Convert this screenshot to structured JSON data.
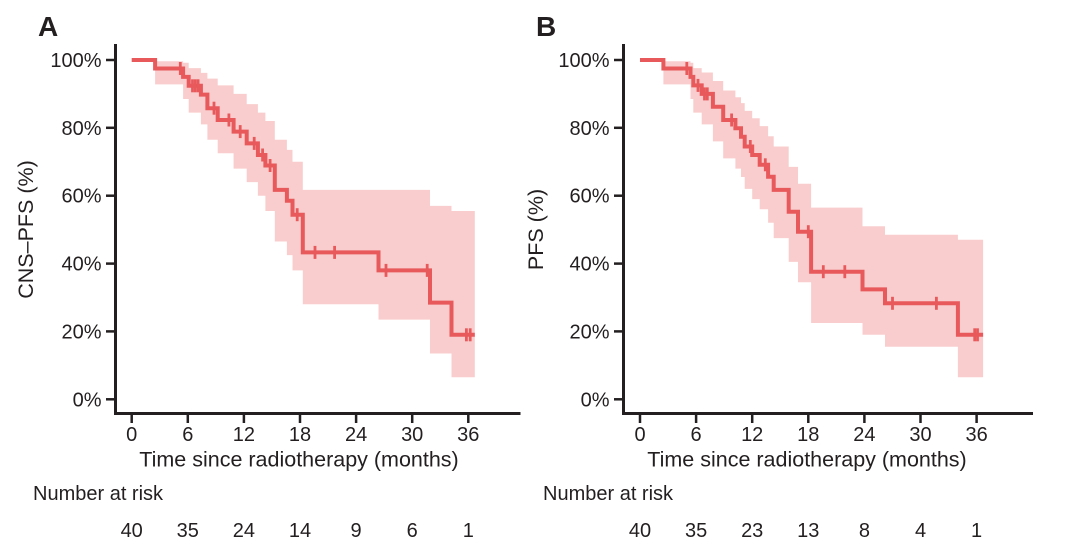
{
  "chart_data": [
    {
      "type": "line",
      "subtype": "kaplan-meier-step",
      "panel_label": "A",
      "ylabel": "CNS–PFS (%)",
      "xlabel": "Time since radiotherapy (months)",
      "xlim": [
        0,
        41.5
      ],
      "ylim": [
        0,
        100
      ],
      "xticks": [
        0,
        6,
        12,
        18,
        24,
        30,
        36
      ],
      "yticks": [
        0,
        20,
        40,
        60,
        80,
        100
      ],
      "ytick_labels": [
        "0%",
        "20%",
        "40%",
        "60%",
        "80%",
        "100%"
      ],
      "grid": false,
      "legend": "none",
      "series": [
        {
          "name": "CNS-PFS",
          "color": "#e8595c",
          "band_color": "#f9cdcd",
          "start_pct": 100,
          "steps": [
            [
              2.5,
              97.5
            ],
            [
              5.5,
              95.0
            ],
            [
              6.1,
              92.4
            ],
            [
              7.4,
              89.8
            ],
            [
              8.1,
              85.8
            ],
            [
              9.2,
              82.3
            ],
            [
              10.9,
              78.9
            ],
            [
              12.3,
              75.4
            ],
            [
              13.5,
              72.0
            ],
            [
              14.3,
              68.9
            ],
            [
              15.3,
              61.7
            ],
            [
              16.6,
              58.5
            ],
            [
              17.2,
              54.4
            ],
            [
              18.3,
              43.3
            ],
            [
              26.4,
              38.0
            ],
            [
              31.9,
              28.5
            ],
            [
              34.2,
              19.0
            ]
          ],
          "censors": [
            [
              5.2,
              97.5
            ],
            [
              6.5,
              92.4
            ],
            [
              6.8,
              92.4
            ],
            [
              7.1,
              92.4
            ],
            [
              8.8,
              85.8
            ],
            [
              10.4,
              82.3
            ],
            [
              11.6,
              78.9
            ],
            [
              13.1,
              75.4
            ],
            [
              14.0,
              72.0
            ],
            [
              14.8,
              68.9
            ],
            [
              17.7,
              54.4
            ],
            [
              19.6,
              43.3
            ],
            [
              21.7,
              43.3
            ],
            [
              27.2,
              38.0
            ],
            [
              31.6,
              38.0
            ],
            [
              35.8,
              19.0
            ],
            [
              36.2,
              19.0
            ]
          ],
          "end_time": 36.7,
          "conf_band": [
            [
              2.5,
              92.8,
              99.6
            ],
            [
              5.5,
              88.5,
              99.2
            ],
            [
              6.1,
              84.5,
              97.6
            ],
            [
              7.4,
              81.0,
              96.2
            ],
            [
              8.1,
              76.5,
              94.5
            ],
            [
              9.2,
              72.5,
              92.5
            ],
            [
              10.9,
              68.0,
              90.0
            ],
            [
              12.3,
              64.0,
              87.0
            ],
            [
              13.5,
              60.0,
              84.5
            ],
            [
              14.3,
              55.5,
              82.0
            ],
            [
              15.3,
              46.5,
              76.5
            ],
            [
              16.6,
              42.5,
              73.5
            ],
            [
              17.2,
              38.0,
              70.0
            ],
            [
              18.3,
              28.0,
              61.7
            ],
            [
              26.4,
              23.5,
              61.7
            ],
            [
              31.9,
              13.5,
              57.0
            ],
            [
              34.2,
              6.5,
              55.5
            ]
          ]
        }
      ],
      "number_at_risk": {
        "label": "Number at risk",
        "times": [
          0,
          6,
          12,
          18,
          24,
          30,
          36
        ],
        "counts": [
          40,
          35,
          24,
          14,
          9,
          6,
          1
        ]
      }
    },
    {
      "type": "line",
      "subtype": "kaplan-meier-step",
      "panel_label": "B",
      "ylabel": "PFS (%)",
      "xlabel": "Time since radiotherapy (months)",
      "xlim": [
        0,
        42
      ],
      "ylim": [
        0,
        100
      ],
      "xticks": [
        0,
        6,
        12,
        18,
        24,
        30,
        36
      ],
      "yticks": [
        0,
        20,
        40,
        60,
        80,
        100
      ],
      "ytick_labels": [
        "0%",
        "20%",
        "40%",
        "60%",
        "80%",
        "100%"
      ],
      "grid": false,
      "legend": "none",
      "series": [
        {
          "name": "PFS",
          "color": "#e8595c",
          "band_color": "#f9cdcd",
          "start_pct": 100,
          "steps": [
            [
              2.5,
              97.5
            ],
            [
              5.4,
              95.0
            ],
            [
              5.7,
              92.5
            ],
            [
              6.6,
              90.0
            ],
            [
              7.8,
              86.2
            ],
            [
              8.9,
              82.3
            ],
            [
              10.2,
              79.9
            ],
            [
              10.8,
              77.4
            ],
            [
              11.2,
              74.5
            ],
            [
              12.0,
              72.0
            ],
            [
              12.8,
              69.1
            ],
            [
              13.7,
              65.6
            ],
            [
              14.3,
              61.7
            ],
            [
              15.9,
              55.3
            ],
            [
              16.9,
              49.4
            ],
            [
              18.3,
              37.6
            ],
            [
              23.8,
              32.4
            ],
            [
              26.2,
              28.3
            ],
            [
              34.0,
              19.0
            ]
          ],
          "censors": [
            [
              5.0,
              97.5
            ],
            [
              6.2,
              92.5
            ],
            [
              6.9,
              90.0
            ],
            [
              7.2,
              90.0
            ],
            [
              9.8,
              82.3
            ],
            [
              11.8,
              74.5
            ],
            [
              13.4,
              69.1
            ],
            [
              18.0,
              49.4
            ],
            [
              19.6,
              37.6
            ],
            [
              21.9,
              37.6
            ],
            [
              27.0,
              28.3
            ],
            [
              31.7,
              28.3
            ],
            [
              35.8,
              19.0
            ],
            [
              36.1,
              19.0
            ]
          ],
          "end_time": 36.7,
          "conf_band": [
            [
              2.5,
              92.8,
              99.6
            ],
            [
              5.4,
              88.5,
              99.2
            ],
            [
              5.7,
              84.5,
              97.6
            ],
            [
              6.6,
              81.0,
              96.3
            ],
            [
              7.8,
              76.0,
              93.8
            ],
            [
              8.9,
              71.0,
              91.0
            ],
            [
              10.2,
              68.0,
              89.0
            ],
            [
              10.8,
              65.5,
              87.3
            ],
            [
              11.2,
              62.0,
              85.0
            ],
            [
              12.0,
              59.0,
              82.8
            ],
            [
              12.8,
              56.0,
              80.5
            ],
            [
              13.7,
              52.0,
              77.5
            ],
            [
              14.3,
              47.5,
              74.5
            ],
            [
              15.9,
              40.5,
              68.5
            ],
            [
              16.9,
              34.5,
              63.5
            ],
            [
              18.3,
              22.5,
              56.5
            ],
            [
              23.8,
              19.0,
              51.0
            ],
            [
              26.2,
              15.5,
              48.5
            ],
            [
              34.0,
              6.5,
              47.0
            ]
          ]
        }
      ],
      "number_at_risk": {
        "label": "Number at risk",
        "times": [
          0,
          6,
          12,
          18,
          24,
          30,
          36
        ],
        "counts": [
          40,
          35,
          23,
          13,
          8,
          4,
          1
        ]
      }
    }
  ],
  "colors": {
    "curve": "#e8595c",
    "band": "#f9cdcd",
    "text": "#231f20",
    "axis": "#231f20"
  }
}
